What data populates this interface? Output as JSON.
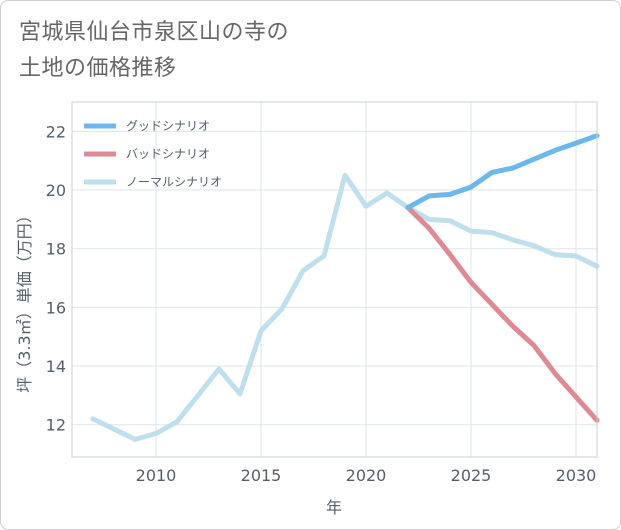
{
  "title_lines": [
    "宮城県仙台市泉区山の寺の",
    "土地の価格推移"
  ],
  "chart_data": {
    "type": "line",
    "xlabel": "年",
    "ylabel": "坪（3.3㎡）単価（万円）",
    "xlim": [
      2006,
      2031
    ],
    "ylim": [
      10.9,
      23
    ],
    "x_ticks": [
      2010,
      2015,
      2020,
      2025,
      2030
    ],
    "y_ticks": [
      12,
      14,
      16,
      18,
      20,
      22
    ],
    "grid": true,
    "legend_position": "top-left",
    "series": [
      {
        "name": "グッドシナリオ",
        "color": "#6cb8ec",
        "x": [
          2022,
          2023,
          2024,
          2025,
          2026,
          2027,
          2028,
          2029,
          2030,
          2031
        ],
        "y": [
          19.4,
          19.8,
          19.85,
          20.1,
          20.6,
          20.75,
          21.05,
          21.35,
          21.6,
          21.85
        ]
      },
      {
        "name": "バッドシナリオ",
        "color": "#dd8a94",
        "x": [
          2022,
          2023,
          2024,
          2025,
          2026,
          2027,
          2028,
          2029,
          2030,
          2031
        ],
        "y": [
          19.4,
          18.7,
          17.8,
          16.85,
          16.1,
          15.35,
          14.7,
          13.75,
          12.95,
          12.15
        ]
      },
      {
        "name": "ノーマルシナリオ",
        "color": "#bfdfee",
        "x": [
          2007,
          2008,
          2009,
          2010,
          2011,
          2012,
          2013,
          2014,
          2015,
          2016,
          2017,
          2018,
          2019,
          2020,
          2021,
          2022,
          2023,
          2024,
          2025,
          2026,
          2027,
          2028,
          2029,
          2030,
          2031
        ],
        "y": [
          12.2,
          11.85,
          11.5,
          11.7,
          12.1,
          13.0,
          13.9,
          13.05,
          15.2,
          15.95,
          17.25,
          17.75,
          20.5,
          19.45,
          19.9,
          19.4,
          19.0,
          18.95,
          18.6,
          18.55,
          18.3,
          18.1,
          17.8,
          17.75,
          17.4
        ]
      }
    ]
  }
}
